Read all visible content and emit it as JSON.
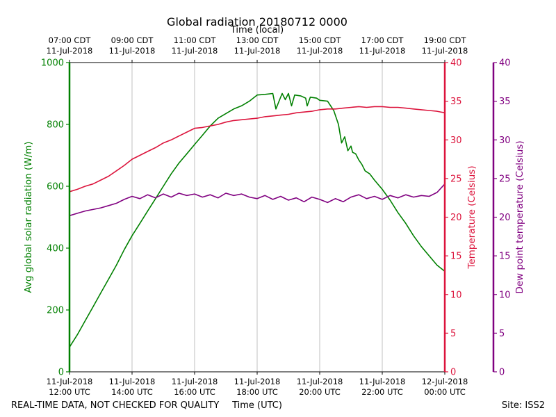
{
  "chart_data": {
    "type": "line",
    "title": "Global radiation 20180712 0000",
    "top_axis_label": "Time (local)",
    "xlabel": "Time (UTC)",
    "footer_left": "REAL-TIME DATA, NOT CHECKED FOR QUALITY",
    "footer_right": "Site: ISS2",
    "x_domain_hours_utc": [
      12,
      24
    ],
    "bottom_ticks": [
      {
        "hour": 12,
        "line1": "11-Jul-2018",
        "line2": "12:00 UTC"
      },
      {
        "hour": 14,
        "line1": "11-Jul-2018",
        "line2": "14:00 UTC"
      },
      {
        "hour": 16,
        "line1": "11-Jul-2018",
        "line2": "16:00 UTC"
      },
      {
        "hour": 18,
        "line1": "11-Jul-2018",
        "line2": "18:00 UTC"
      },
      {
        "hour": 20,
        "line1": "11-Jul-2018",
        "line2": "20:00 UTC"
      },
      {
        "hour": 22,
        "line1": "11-Jul-2018",
        "line2": "22:00 UTC"
      },
      {
        "hour": 24,
        "line1": "12-Jul-2018",
        "line2": "00:00 UTC"
      }
    ],
    "top_ticks": [
      {
        "hour": 12,
        "line1": "07:00 CDT",
        "line2": "11-Jul-2018"
      },
      {
        "hour": 14,
        "line1": "09:00 CDT",
        "line2": "11-Jul-2018"
      },
      {
        "hour": 16,
        "line1": "11:00 CDT",
        "line2": "11-Jul-2018"
      },
      {
        "hour": 18,
        "line1": "13:00 CDT",
        "line2": "11-Jul-2018"
      },
      {
        "hour": 20,
        "line1": "15:00 CDT",
        "line2": "11-Jul-2018"
      },
      {
        "hour": 22,
        "line1": "17:00 CDT",
        "line2": "11-Jul-2018"
      },
      {
        "hour": 24,
        "line1": "19:00 CDT",
        "line2": "11-Jul-2018"
      }
    ],
    "grid": "vertical",
    "axes": {
      "radiation": {
        "label": "Avg global solar radiation (W/m)",
        "range": [
          0,
          1000
        ],
        "ticks": [
          0,
          200,
          400,
          600,
          800,
          1000
        ],
        "color": "#008000",
        "side": "left"
      },
      "temperature": {
        "label": "Temperature (Celsius)",
        "range": [
          0,
          40
        ],
        "ticks": [
          0,
          5,
          10,
          15,
          20,
          25,
          30,
          35,
          40
        ],
        "color": "#dc143c",
        "side": "right"
      },
      "dewpoint": {
        "label": "Dew point temperature (Celsius)",
        "range": [
          0,
          40
        ],
        "ticks": [
          0,
          5,
          10,
          15,
          20,
          25,
          30,
          35,
          40
        ],
        "color": "#800080",
        "side": "right-outer"
      }
    },
    "series": [
      {
        "axis": "radiation",
        "color": "#008000",
        "points": [
          [
            12.0,
            80
          ],
          [
            12.25,
            120
          ],
          [
            12.5,
            165
          ],
          [
            12.75,
            210
          ],
          [
            13.0,
            255
          ],
          [
            13.25,
            300
          ],
          [
            13.5,
            345
          ],
          [
            13.75,
            395
          ],
          [
            14.0,
            440
          ],
          [
            14.25,
            480
          ],
          [
            14.5,
            520
          ],
          [
            14.75,
            560
          ],
          [
            15.0,
            600
          ],
          [
            15.25,
            640
          ],
          [
            15.5,
            675
          ],
          [
            15.75,
            705
          ],
          [
            16.0,
            735
          ],
          [
            16.25,
            765
          ],
          [
            16.5,
            795
          ],
          [
            16.75,
            820
          ],
          [
            17.0,
            835
          ],
          [
            17.25,
            850
          ],
          [
            17.5,
            860
          ],
          [
            17.75,
            875
          ],
          [
            18.0,
            895
          ],
          [
            18.25,
            897
          ],
          [
            18.5,
            900
          ],
          [
            18.6,
            850
          ],
          [
            18.7,
            875
          ],
          [
            18.8,
            900
          ],
          [
            18.9,
            880
          ],
          [
            19.0,
            900
          ],
          [
            19.1,
            860
          ],
          [
            19.2,
            895
          ],
          [
            19.4,
            892
          ],
          [
            19.55,
            885
          ],
          [
            19.6,
            860
          ],
          [
            19.7,
            888
          ],
          [
            19.9,
            885
          ],
          [
            20.0,
            878
          ],
          [
            20.25,
            875
          ],
          [
            20.45,
            845
          ],
          [
            20.6,
            800
          ],
          [
            20.7,
            740
          ],
          [
            20.8,
            760
          ],
          [
            20.9,
            715
          ],
          [
            21.0,
            730
          ],
          [
            21.05,
            710
          ],
          [
            21.15,
            705
          ],
          [
            21.25,
            685
          ],
          [
            21.35,
            670
          ],
          [
            21.45,
            650
          ],
          [
            21.6,
            640
          ],
          [
            21.75,
            620
          ],
          [
            22.0,
            590
          ],
          [
            22.25,
            555
          ],
          [
            22.5,
            515
          ],
          [
            22.75,
            480
          ],
          [
            23.0,
            440
          ],
          [
            23.25,
            405
          ],
          [
            23.5,
            375
          ],
          [
            23.75,
            345
          ],
          [
            24.0,
            325
          ]
        ]
      },
      {
        "axis": "temperature",
        "color": "#dc143c",
        "points": [
          [
            12.0,
            23.3
          ],
          [
            12.25,
            23.6
          ],
          [
            12.5,
            24.0
          ],
          [
            12.75,
            24.3
          ],
          [
            13.0,
            24.8
          ],
          [
            13.25,
            25.3
          ],
          [
            13.5,
            26.0
          ],
          [
            13.75,
            26.7
          ],
          [
            14.0,
            27.5
          ],
          [
            14.25,
            28.0
          ],
          [
            14.5,
            28.5
          ],
          [
            14.75,
            29.0
          ],
          [
            15.0,
            29.6
          ],
          [
            15.25,
            30.0
          ],
          [
            15.5,
            30.5
          ],
          [
            15.75,
            31.0
          ],
          [
            16.0,
            31.5
          ],
          [
            16.25,
            31.6
          ],
          [
            16.5,
            31.8
          ],
          [
            16.75,
            32.0
          ],
          [
            17.0,
            32.3
          ],
          [
            17.25,
            32.5
          ],
          [
            17.5,
            32.6
          ],
          [
            17.75,
            32.7
          ],
          [
            18.0,
            32.8
          ],
          [
            18.25,
            33.0
          ],
          [
            18.5,
            33.1
          ],
          [
            18.75,
            33.2
          ],
          [
            19.0,
            33.3
          ],
          [
            19.25,
            33.5
          ],
          [
            19.5,
            33.6
          ],
          [
            19.75,
            33.7
          ],
          [
            20.0,
            33.9
          ],
          [
            20.25,
            34.0
          ],
          [
            20.5,
            34.0
          ],
          [
            20.75,
            34.1
          ],
          [
            21.0,
            34.2
          ],
          [
            21.25,
            34.3
          ],
          [
            21.5,
            34.2
          ],
          [
            21.75,
            34.3
          ],
          [
            22.0,
            34.3
          ],
          [
            22.25,
            34.2
          ],
          [
            22.5,
            34.2
          ],
          [
            22.75,
            34.1
          ],
          [
            23.0,
            34.0
          ],
          [
            23.25,
            33.9
          ],
          [
            23.5,
            33.8
          ],
          [
            23.75,
            33.7
          ],
          [
            24.0,
            33.5
          ]
        ]
      },
      {
        "axis": "dewpoint",
        "color": "#800080",
        "points": [
          [
            12.0,
            20.2
          ],
          [
            12.25,
            20.5
          ],
          [
            12.5,
            20.8
          ],
          [
            12.75,
            21.0
          ],
          [
            13.0,
            21.2
          ],
          [
            13.25,
            21.5
          ],
          [
            13.5,
            21.8
          ],
          [
            13.75,
            22.3
          ],
          [
            14.0,
            22.7
          ],
          [
            14.25,
            22.4
          ],
          [
            14.5,
            22.9
          ],
          [
            14.75,
            22.5
          ],
          [
            15.0,
            23.0
          ],
          [
            15.25,
            22.6
          ],
          [
            15.5,
            23.1
          ],
          [
            15.75,
            22.8
          ],
          [
            16.0,
            23.0
          ],
          [
            16.25,
            22.6
          ],
          [
            16.5,
            22.9
          ],
          [
            16.75,
            22.5
          ],
          [
            17.0,
            23.1
          ],
          [
            17.25,
            22.8
          ],
          [
            17.5,
            23.0
          ],
          [
            17.75,
            22.6
          ],
          [
            18.0,
            22.4
          ],
          [
            18.25,
            22.8
          ],
          [
            18.5,
            22.3
          ],
          [
            18.75,
            22.7
          ],
          [
            19.0,
            22.2
          ],
          [
            19.25,
            22.5
          ],
          [
            19.5,
            22.0
          ],
          [
            19.75,
            22.6
          ],
          [
            20.0,
            22.3
          ],
          [
            20.25,
            21.9
          ],
          [
            20.5,
            22.4
          ],
          [
            20.75,
            22.0
          ],
          [
            21.0,
            22.6
          ],
          [
            21.25,
            22.9
          ],
          [
            21.5,
            22.4
          ],
          [
            21.75,
            22.7
          ],
          [
            22.0,
            22.3
          ],
          [
            22.25,
            22.8
          ],
          [
            22.5,
            22.5
          ],
          [
            22.75,
            22.9
          ],
          [
            23.0,
            22.6
          ],
          [
            23.25,
            22.8
          ],
          [
            23.5,
            22.7
          ],
          [
            23.75,
            23.2
          ],
          [
            24.0,
            24.3
          ]
        ]
      }
    ]
  }
}
